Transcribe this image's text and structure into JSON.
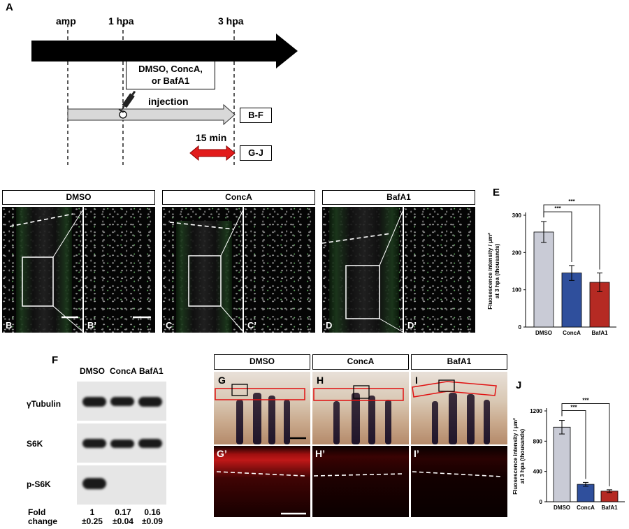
{
  "panel_letters": {
    "a": "A",
    "e": "E",
    "f": "F",
    "j": "J"
  },
  "timeline": {
    "labels": [
      "amp",
      "1 hpa",
      "3 hpa"
    ],
    "treatment_box": [
      "DMSO, ConcA,",
      "or BafA1"
    ],
    "injection": "injection",
    "bf_box": "B-F",
    "duration": "15 min",
    "gj_box": "G-J"
  },
  "micro_panels": {
    "headers": [
      "DMSO",
      "ConcA",
      "BafA1"
    ],
    "sub_labels": [
      "B",
      "B’",
      "C",
      "C’",
      "D",
      "D’"
    ]
  },
  "chart_e": {
    "ylabel": [
      "Fluosescence intensity / μm²",
      "at 3 hpa (thousands)"
    ],
    "significance": [
      "***",
      "***"
    ]
  },
  "western": {
    "columns": [
      "DMSO",
      "ConcA",
      "BafA1"
    ],
    "rows": [
      "γTubulin",
      "S6K",
      "p-S6K"
    ],
    "fold_label": [
      "Fold",
      "change"
    ],
    "fold_values": [
      "1",
      "0.17",
      "0.16"
    ],
    "fold_errors": [
      "±0.25",
      "±0.04",
      "±0.09"
    ]
  },
  "fin_panels": {
    "headers": [
      "DMSO",
      "ConcA",
      "BafA1"
    ],
    "top_labels": [
      "G",
      "H",
      "I"
    ],
    "bottom_labels": [
      "G’",
      "H’",
      "I’"
    ]
  },
  "chart_j": {
    "ylabel": [
      "Fluosescence intensity / μm²",
      "at 3 hpa (thousands)"
    ],
    "significance": [
      "***",
      "***"
    ]
  },
  "chart_data": [
    {
      "type": "bar",
      "panel": "E",
      "categories": [
        "DMSO",
        "ConcA",
        "BafA1"
      ],
      "values": [
        255,
        145,
        120
      ],
      "errors": [
        28,
        20,
        25
      ],
      "colors": [
        "#c9cbd6",
        "#2f4f9c",
        "#b52a23"
      ],
      "ylim": [
        0,
        300
      ],
      "yticks": [
        0,
        100,
        200,
        300
      ],
      "ylabel": "Fluosescence intensity / μm² at 3 hpa (thousands)"
    },
    {
      "type": "bar",
      "panel": "J",
      "categories": [
        "DMSO",
        "ConcA",
        "BafA1"
      ],
      "values": [
        985,
        230,
        140
      ],
      "errors": [
        90,
        25,
        18
      ],
      "colors": [
        "#c9cbd6",
        "#2f4f9c",
        "#b52a23"
      ],
      "ylim": [
        0,
        1200
      ],
      "yticks": [
        0,
        400,
        800,
        1200
      ],
      "ylabel": "Fluosescence intensity / μm² at 3 hpa (thousands)"
    }
  ]
}
